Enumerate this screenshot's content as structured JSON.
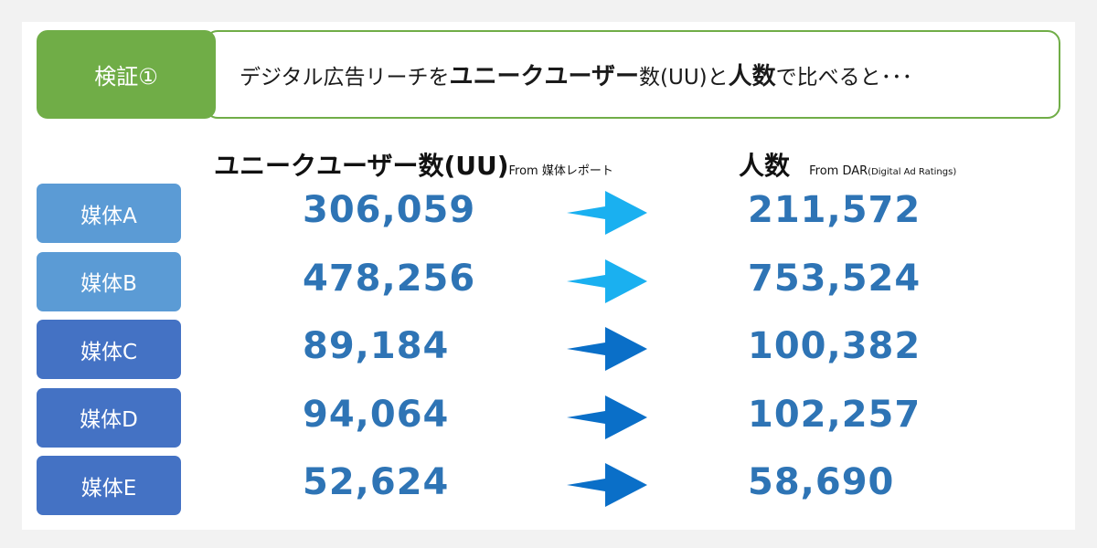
{
  "badge": {
    "label": "検証①"
  },
  "headline": {
    "part1": "デジタル広告リーチを",
    "part2": "ユニークユーザー",
    "part3": "数(UU)と",
    "part4": "人数",
    "part5": "で比べると･･･"
  },
  "columns": {
    "uu": {
      "title": "ユニークユーザー数(UU)",
      "source": "From 媒体レポート"
    },
    "people": {
      "title": "人数",
      "source_prefix": "From DAR",
      "source_detail": "(Digital Ad Ratings)"
    }
  },
  "colors": {
    "green": "#70ad47",
    "label_light": "#5b9bd5",
    "label_dark": "#4472c4",
    "arrow_light": "#1ab0f0",
    "arrow_dark": "#0a6fc8",
    "number": "#2e74b5"
  },
  "rows": [
    {
      "label": "媒体A",
      "uu": "306,059",
      "people": "211,572",
      "label_color": "#5b9bd5",
      "arrow_color": "#1ab0f0"
    },
    {
      "label": "媒体B",
      "uu": "478,256",
      "people": "753,524",
      "label_color": "#5b9bd5",
      "arrow_color": "#1ab0f0"
    },
    {
      "label": "媒体C",
      "uu": "89,184",
      "people": "100,382",
      "label_color": "#4472c4",
      "arrow_color": "#0a6fc8"
    },
    {
      "label": "媒体D",
      "uu": "94,064",
      "people": "102,257",
      "label_color": "#4472c4",
      "arrow_color": "#0a6fc8"
    },
    {
      "label": "媒体E",
      "uu": "52,624",
      "people": "58,690",
      "label_color": "#4472c4",
      "arrow_color": "#0a6fc8"
    }
  ]
}
